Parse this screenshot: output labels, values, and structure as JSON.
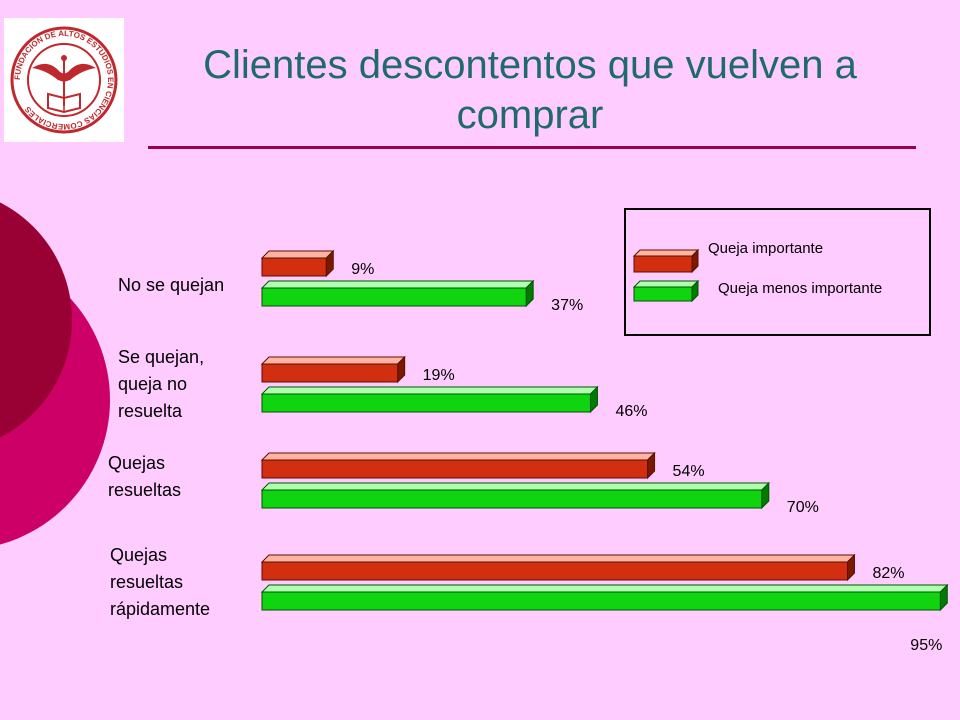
{
  "title": "Clientes descontentos que vuelven a comprar",
  "logo": {
    "ring_text": "FUNDACION DE ALTOS ESTUDIOS EN CIENCIAS COMERCIALES",
    "color": "#c0282d"
  },
  "colors": {
    "title": "#1f6b6b",
    "rule": "#99004d",
    "series_important": "#d22e10",
    "series_less_important": "#10d410",
    "background": "#ffccff"
  },
  "legend": {
    "items": [
      {
        "label": "Queja importante",
        "color": "#d22e10"
      },
      {
        "label": "Queja menos importante",
        "color": "#10d410"
      }
    ]
  },
  "chart_data": {
    "type": "bar",
    "orientation": "horizontal",
    "title": "Clientes descontentos que vuelven a comprar",
    "categories": [
      "No se quejan",
      "Se quejan,\nqueja no\nresuelta",
      "Quejas\nresueltas",
      "Quejas\nresueltas\nrápidamente"
    ],
    "series": [
      {
        "name": "Queja importante",
        "values": [
          9,
          19,
          54,
          82
        ],
        "labels": [
          "9%",
          "19%",
          "54%",
          "82%"
        ]
      },
      {
        "name": "Queja menos importante",
        "values": [
          37,
          46,
          70,
          95
        ],
        "labels": [
          "37%",
          "46%",
          "70%",
          "95%"
        ]
      }
    ],
    "xlim": [
      0,
      100
    ],
    "unit": "%",
    "legend_position": "top-right",
    "grid": false
  }
}
